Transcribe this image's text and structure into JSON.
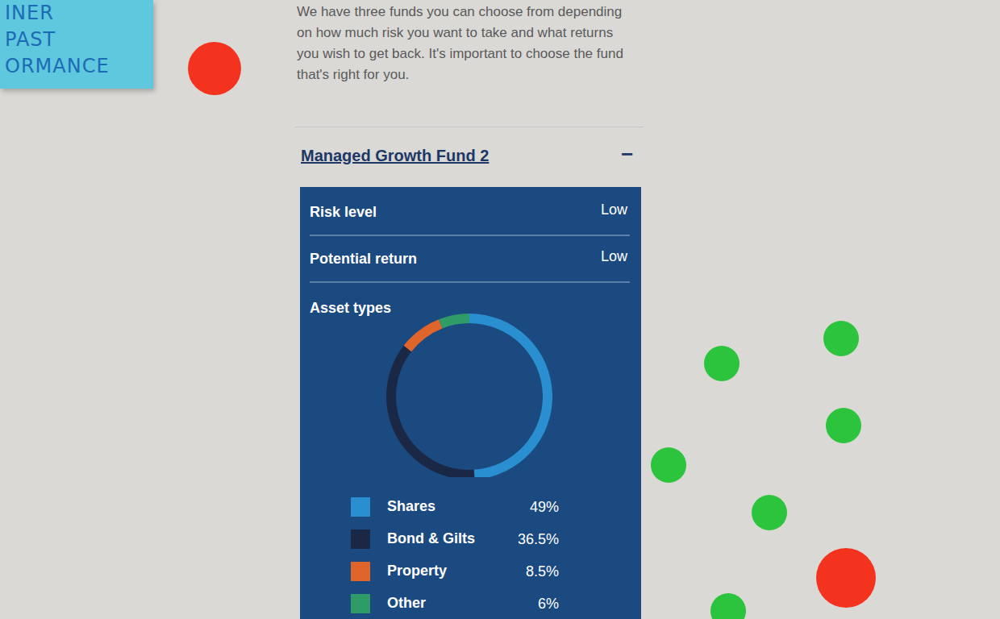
{
  "sticky_note": [
    "INER",
    "PAST",
    "ORMANCE"
  ],
  "intro": "We have three funds you can choose from depending on how much risk you want to take and what returns you wish to get back. It's important to choose the fund that's right for you.",
  "fund": {
    "name": "Managed Growth Fund 2",
    "toggle": "−",
    "rows": [
      {
        "label": "Risk level",
        "value": "Low"
      },
      {
        "label": "Potential return",
        "value": "Low"
      }
    ],
    "section": "Asset types"
  },
  "chart_data": {
    "type": "pie",
    "categories": [
      "Shares",
      "Bond & Gilts",
      "Property",
      "Other"
    ],
    "values": [
      49,
      36.5,
      8.5,
      6
    ],
    "value_labels": [
      "49%",
      "36.5%",
      "8.5%",
      "6%"
    ],
    "colors": [
      "#2a8fd0",
      "#1a2846",
      "#e0652b",
      "#2f9b66"
    ]
  }
}
